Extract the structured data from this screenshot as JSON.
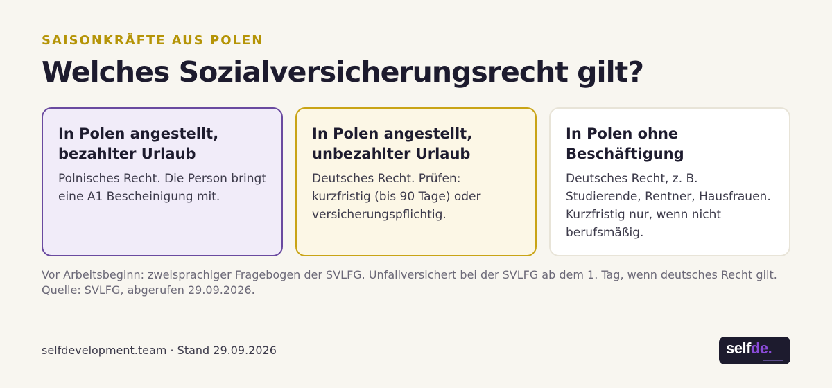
{
  "header": {
    "eyebrow": "SAISONKRÄFTE AUS POLEN",
    "title": "Welches Sozialversicherungsrecht gilt?"
  },
  "cards": [
    {
      "title_line1": "In Polen angestellt,",
      "title_line2": "bezahlter Urlaub",
      "text": "Polnisches Recht. Die Person bringt eine A1 Bescheinigung mit."
    },
    {
      "title_line1": "In Polen angestellt,",
      "title_line2": "unbezahlter Urlaub",
      "text": "Deutsches Recht. Prüfen: kurzfristig (bis 90 Tage) oder versicherungspflichtig."
    },
    {
      "title_line1": "In Polen ohne",
      "title_line2": "Beschäftigung",
      "text": "Deutsches Recht, z. B. Studierende, Rentner, Hausfrauen. Kurzfristig nur, wenn nicht berufsmäßig."
    }
  ],
  "footnote": "Vor Arbeitsbeginn: zweisprachiger Fragebogen der SVLFG. Unfallversichert bei der SVLFG ab dem 1. Tag, wenn deutsches Recht gilt. Quelle: SVLFG, abgerufen 29.09.2026.",
  "footer": {
    "source": "selfdevelopment.team · Stand 29.09.2026",
    "logo_part1": "self",
    "logo_part2": "de."
  },
  "colors": {
    "accent": "#b59407",
    "purple": "#6a4aa0",
    "gold": "#c9a416",
    "background": "#f8f6f0"
  }
}
